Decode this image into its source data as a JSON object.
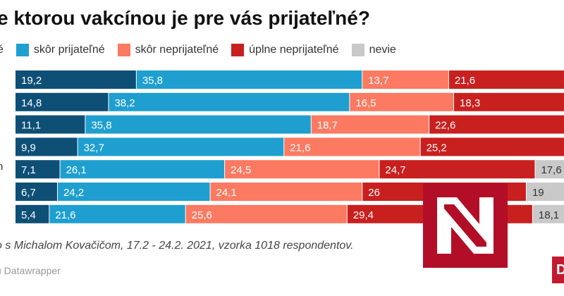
{
  "title": "e ktorou vakcínou je pre vás prijateľné?",
  "legend": [
    {
      "label": "é",
      "color": "#0e4f76"
    },
    {
      "label": "skôr prijateľné",
      "color": "#1f9fcf"
    },
    {
      "label": "skôr neprijateľné",
      "color": "#fb7a61"
    },
    {
      "label": "úplne neprijateľné",
      "color": "#c8201f"
    },
    {
      "label": "nevie",
      "color": "#c9c9c9"
    }
  ],
  "row_label_visible": "n",
  "chart_data": {
    "type": "bar",
    "orientation": "horizontal-stacked",
    "series_colors": [
      "#0e4f76",
      "#1f9fcf",
      "#fb7a61",
      "#c8201f",
      "#c9c9c9"
    ],
    "rows": [
      [
        19.2,
        35.8,
        13.7,
        21.6,
        null
      ],
      [
        14.8,
        38.2,
        16.5,
        18.3,
        null
      ],
      [
        11.1,
        35.8,
        18.7,
        22.6,
        null
      ],
      [
        9.9,
        32.7,
        21.6,
        25.2,
        null
      ],
      [
        7.1,
        26.1,
        24.5,
        24.7,
        17.6
      ],
      [
        6.7,
        24.2,
        24.1,
        26,
        19
      ],
      [
        5.4,
        21.6,
        25.6,
        29.4,
        18.1
      ]
    ],
    "labels": [
      [
        "19,2",
        "35,8",
        "13,7",
        "21,6",
        ""
      ],
      [
        "14,8",
        "38,2",
        "16,5",
        "18,3",
        ""
      ],
      [
        "11,1",
        "35,8",
        "18,7",
        "22,6",
        ""
      ],
      [
        "9,9",
        "32,7",
        "21,6",
        "25,2",
        ""
      ],
      [
        "7,1",
        "26,1",
        "24,5",
        "24,7",
        "17,6"
      ],
      [
        "6,7",
        "24,2",
        "24,1",
        "26",
        "19"
      ],
      [
        "5,4",
        "21,6",
        "25,6",
        "29,4",
        "18,1"
      ]
    ]
  },
  "note": "o s Michalom Kovačičom, 17.2 - 24.2. 2021, vzorka 1018 respondentov.",
  "credit": "u Datawrapper",
  "logo_text": "N",
  "badge_text": "D"
}
